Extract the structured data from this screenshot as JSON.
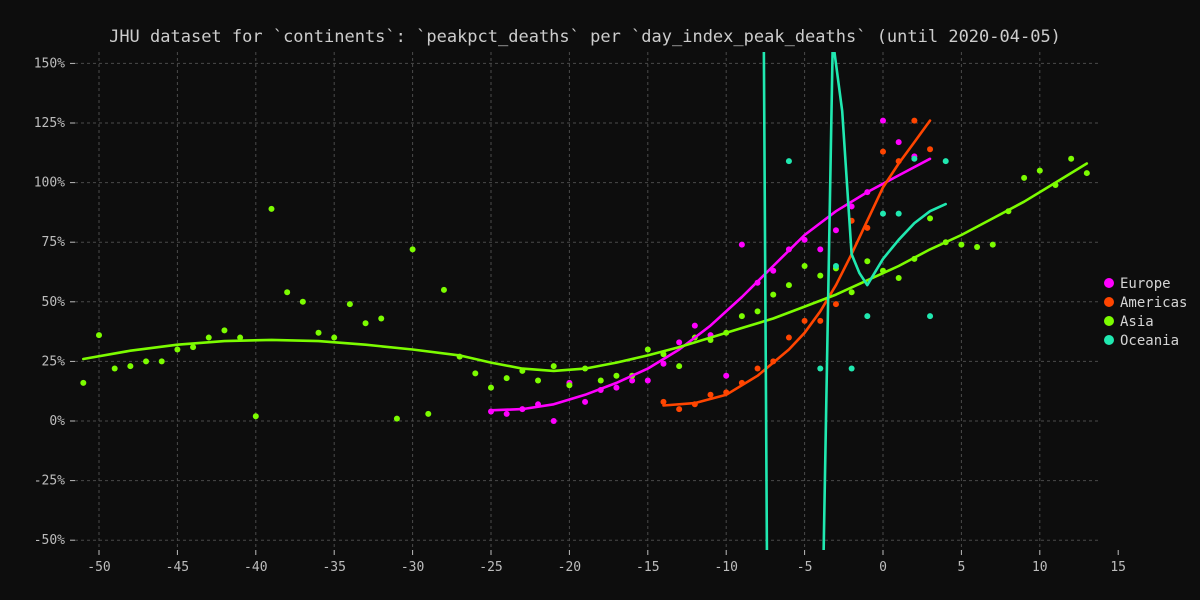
{
  "chart_data": {
    "type": "scatter",
    "title": "JHU dataset for `continents`: `peakpct_deaths` per `day_index_peak_deaths` (until 2020-04-05)",
    "xlabel": "",
    "ylabel": "",
    "xlim": [
      -52,
      14
    ],
    "ylim": [
      -52,
      155
    ],
    "x_ticks": [
      -50,
      -45,
      -40,
      -35,
      -30,
      -25,
      -20,
      -15,
      -10,
      -5,
      0,
      5,
      10,
      15
    ],
    "y_ticks": [
      150,
      125,
      100,
      75,
      50,
      25,
      0,
      -25,
      -50
    ],
    "y_tick_format": "percent",
    "grid": true,
    "legend_position": "right",
    "series": [
      {
        "name": "Europe",
        "color": "#ff00ff",
        "points": [
          [
            -25,
            4
          ],
          [
            -24,
            3
          ],
          [
            -23,
            5
          ],
          [
            -22,
            7
          ],
          [
            -21,
            0
          ],
          [
            -20,
            16
          ],
          [
            -19,
            8
          ],
          [
            -18,
            13
          ],
          [
            -17,
            14
          ],
          [
            -16,
            17
          ],
          [
            -15,
            17
          ],
          [
            -14,
            24
          ],
          [
            -13,
            33
          ],
          [
            -12,
            40
          ],
          [
            -11,
            36
          ],
          [
            -10,
            19
          ],
          [
            -9,
            74
          ],
          [
            -8,
            58
          ],
          [
            -7,
            63
          ],
          [
            -6,
            72
          ],
          [
            -5,
            76
          ],
          [
            -4,
            72
          ],
          [
            -3,
            80
          ],
          [
            -2,
            90
          ],
          [
            -1,
            96
          ],
          [
            0,
            126
          ],
          [
            1,
            117
          ],
          [
            2,
            111
          ]
        ],
        "trend": [
          [
            -25,
            4.5
          ],
          [
            -23,
            5
          ],
          [
            -21,
            7
          ],
          [
            -19,
            11
          ],
          [
            -17,
            16
          ],
          [
            -15,
            22
          ],
          [
            -13,
            30
          ],
          [
            -11,
            40
          ],
          [
            -9,
            52
          ],
          [
            -7,
            65
          ],
          [
            -5,
            78
          ],
          [
            -3,
            88
          ],
          [
            -1,
            96
          ],
          [
            1,
            103
          ],
          [
            3,
            110
          ]
        ]
      },
      {
        "name": "Americas",
        "color": "#ff4500",
        "points": [
          [
            -14,
            8
          ],
          [
            -13,
            5
          ],
          [
            -12,
            7
          ],
          [
            -11,
            11
          ],
          [
            -10,
            12
          ],
          [
            -9,
            16
          ],
          [
            -8,
            22
          ],
          [
            -7,
            25
          ],
          [
            -6,
            35
          ],
          [
            -5,
            42
          ],
          [
            -4,
            42
          ],
          [
            -3,
            49
          ],
          [
            -2,
            84
          ],
          [
            -1,
            81
          ],
          [
            0,
            113
          ],
          [
            1,
            109
          ],
          [
            2,
            126
          ],
          [
            3,
            114
          ]
        ],
        "trend": [
          [
            -14,
            6.5
          ],
          [
            -12,
            7.5
          ],
          [
            -10,
            11
          ],
          [
            -8,
            19
          ],
          [
            -6,
            30
          ],
          [
            -5,
            37
          ],
          [
            -4,
            46
          ],
          [
            -3,
            57
          ],
          [
            -2,
            70
          ],
          [
            -1,
            84
          ],
          [
            0,
            98
          ],
          [
            1,
            108
          ],
          [
            2,
            117
          ],
          [
            3,
            126
          ]
        ]
      },
      {
        "name": "Asia",
        "color": "#7cfc00",
        "points": [
          [
            -51,
            16
          ],
          [
            -50,
            36
          ],
          [
            -49,
            22
          ],
          [
            -48,
            23
          ],
          [
            -47,
            25
          ],
          [
            -46,
            25
          ],
          [
            -45,
            30
          ],
          [
            -44,
            31
          ],
          [
            -43,
            35
          ],
          [
            -42,
            38
          ],
          [
            -41,
            35
          ],
          [
            -40,
            2
          ],
          [
            -39,
            89
          ],
          [
            -38,
            54
          ],
          [
            -37,
            50
          ],
          [
            -36,
            37
          ],
          [
            -35,
            35
          ],
          [
            -34,
            49
          ],
          [
            -33,
            41
          ],
          [
            -32,
            43
          ],
          [
            -31,
            1
          ],
          [
            -30,
            72
          ],
          [
            -29,
            3
          ],
          [
            -28,
            55
          ],
          [
            -27,
            27
          ],
          [
            -26,
            20
          ],
          [
            -25,
            14
          ],
          [
            -24,
            18
          ],
          [
            -23,
            21
          ],
          [
            -22,
            17
          ],
          [
            -21,
            23
          ],
          [
            -20,
            15
          ],
          [
            -19,
            22
          ],
          [
            -18,
            17
          ],
          [
            -17,
            19
          ],
          [
            -16,
            19
          ],
          [
            -15,
            30
          ],
          [
            -14,
            28
          ],
          [
            -13,
            23
          ],
          [
            -12,
            35
          ],
          [
            -11,
            34
          ],
          [
            -10,
            37
          ],
          [
            -9,
            44
          ],
          [
            -8,
            46
          ],
          [
            -7,
            53
          ],
          [
            -6,
            57
          ],
          [
            -5,
            65
          ],
          [
            -4,
            61
          ],
          [
            -3,
            64
          ],
          [
            -2,
            54
          ],
          [
            -1,
            67
          ],
          [
            0,
            63
          ],
          [
            1,
            60
          ],
          [
            2,
            68
          ],
          [
            3,
            85
          ],
          [
            4,
            75
          ],
          [
            5,
            74
          ],
          [
            6,
            73
          ],
          [
            7,
            74
          ],
          [
            8,
            88
          ],
          [
            9,
            102
          ],
          [
            10,
            105
          ],
          [
            11,
            99
          ],
          [
            12,
            110
          ],
          [
            13,
            104
          ]
        ],
        "trend": [
          [
            -51,
            26
          ],
          [
            -48,
            29.5
          ],
          [
            -45,
            32
          ],
          [
            -42,
            33.5
          ],
          [
            -39,
            34
          ],
          [
            -36,
            33.5
          ],
          [
            -33,
            32
          ],
          [
            -30,
            30
          ],
          [
            -27,
            27.5
          ],
          [
            -25,
            24.5
          ],
          [
            -23,
            22
          ],
          [
            -21,
            21
          ],
          [
            -19,
            22
          ],
          [
            -17,
            24.5
          ],
          [
            -15,
            27.5
          ],
          [
            -13,
            31
          ],
          [
            -11,
            35
          ],
          [
            -9,
            39
          ],
          [
            -7,
            43
          ],
          [
            -5,
            48
          ],
          [
            -3,
            53
          ],
          [
            -1,
            59
          ],
          [
            1,
            65
          ],
          [
            3,
            72
          ],
          [
            5,
            78
          ],
          [
            7,
            85
          ],
          [
            9,
            92
          ],
          [
            11,
            100
          ],
          [
            13,
            108
          ]
        ]
      },
      {
        "name": "Oceania",
        "color": "#20e8b0",
        "points": [
          [
            -6,
            109
          ],
          [
            -4,
            22
          ],
          [
            -3,
            65
          ],
          [
            -2,
            22
          ],
          [
            -1,
            44
          ],
          [
            0,
            87
          ],
          [
            1,
            87
          ],
          [
            2,
            110
          ],
          [
            3,
            44
          ],
          [
            4,
            109
          ]
        ],
        "trend": [
          [
            -7.6,
            160
          ],
          [
            -7.4,
            -60
          ],
          [
            -3.8,
            -60
          ],
          [
            -3.2,
            160
          ],
          [
            -2.6,
            130
          ],
          [
            -2,
            70
          ],
          [
            -1.5,
            62
          ],
          [
            -1,
            57
          ],
          [
            0,
            68
          ],
          [
            1,
            76
          ],
          [
            2,
            83
          ],
          [
            3,
            88
          ],
          [
            4,
            91
          ]
        ]
      }
    ]
  }
}
